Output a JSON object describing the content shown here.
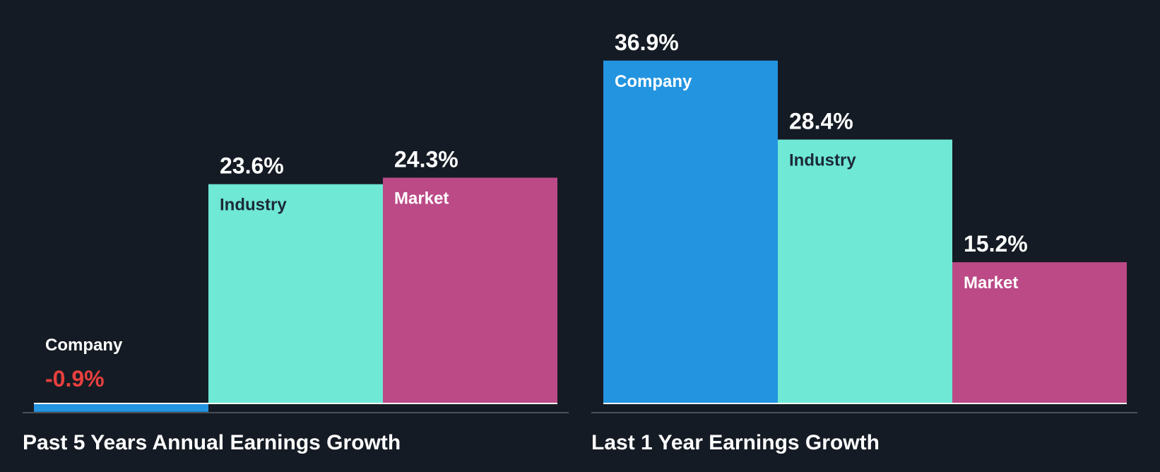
{
  "colors": {
    "background": "#151b24",
    "company": "#2394e0",
    "industry": "#6fe8d6",
    "market": "#bb4a87",
    "negative_value": "#e8403e",
    "text_light": "#ffffff",
    "text_dark": "#1b2a36",
    "axis": "#4a5059",
    "baseline": "#ffffff"
  },
  "chart_data": [
    {
      "type": "bar",
      "title": "Past 5 Years Annual Earnings Growth",
      "categories": [
        "Company",
        "Industry",
        "Market"
      ],
      "values": [
        -0.9,
        23.6,
        24.3
      ],
      "value_labels": [
        "-0.9%",
        "23.6%",
        "24.3%"
      ],
      "unit": "%",
      "ylim": [
        -0.9,
        36.9
      ],
      "grid": false,
      "legend": "none"
    },
    {
      "type": "bar",
      "title": "Last 1 Year Earnings Growth",
      "categories": [
        "Company",
        "Industry",
        "Market"
      ],
      "values": [
        36.9,
        28.4,
        15.2
      ],
      "value_labels": [
        "36.9%",
        "28.4%",
        "15.2%"
      ],
      "unit": "%",
      "ylim": [
        -0.9,
        36.9
      ],
      "grid": false,
      "legend": "none"
    }
  ]
}
